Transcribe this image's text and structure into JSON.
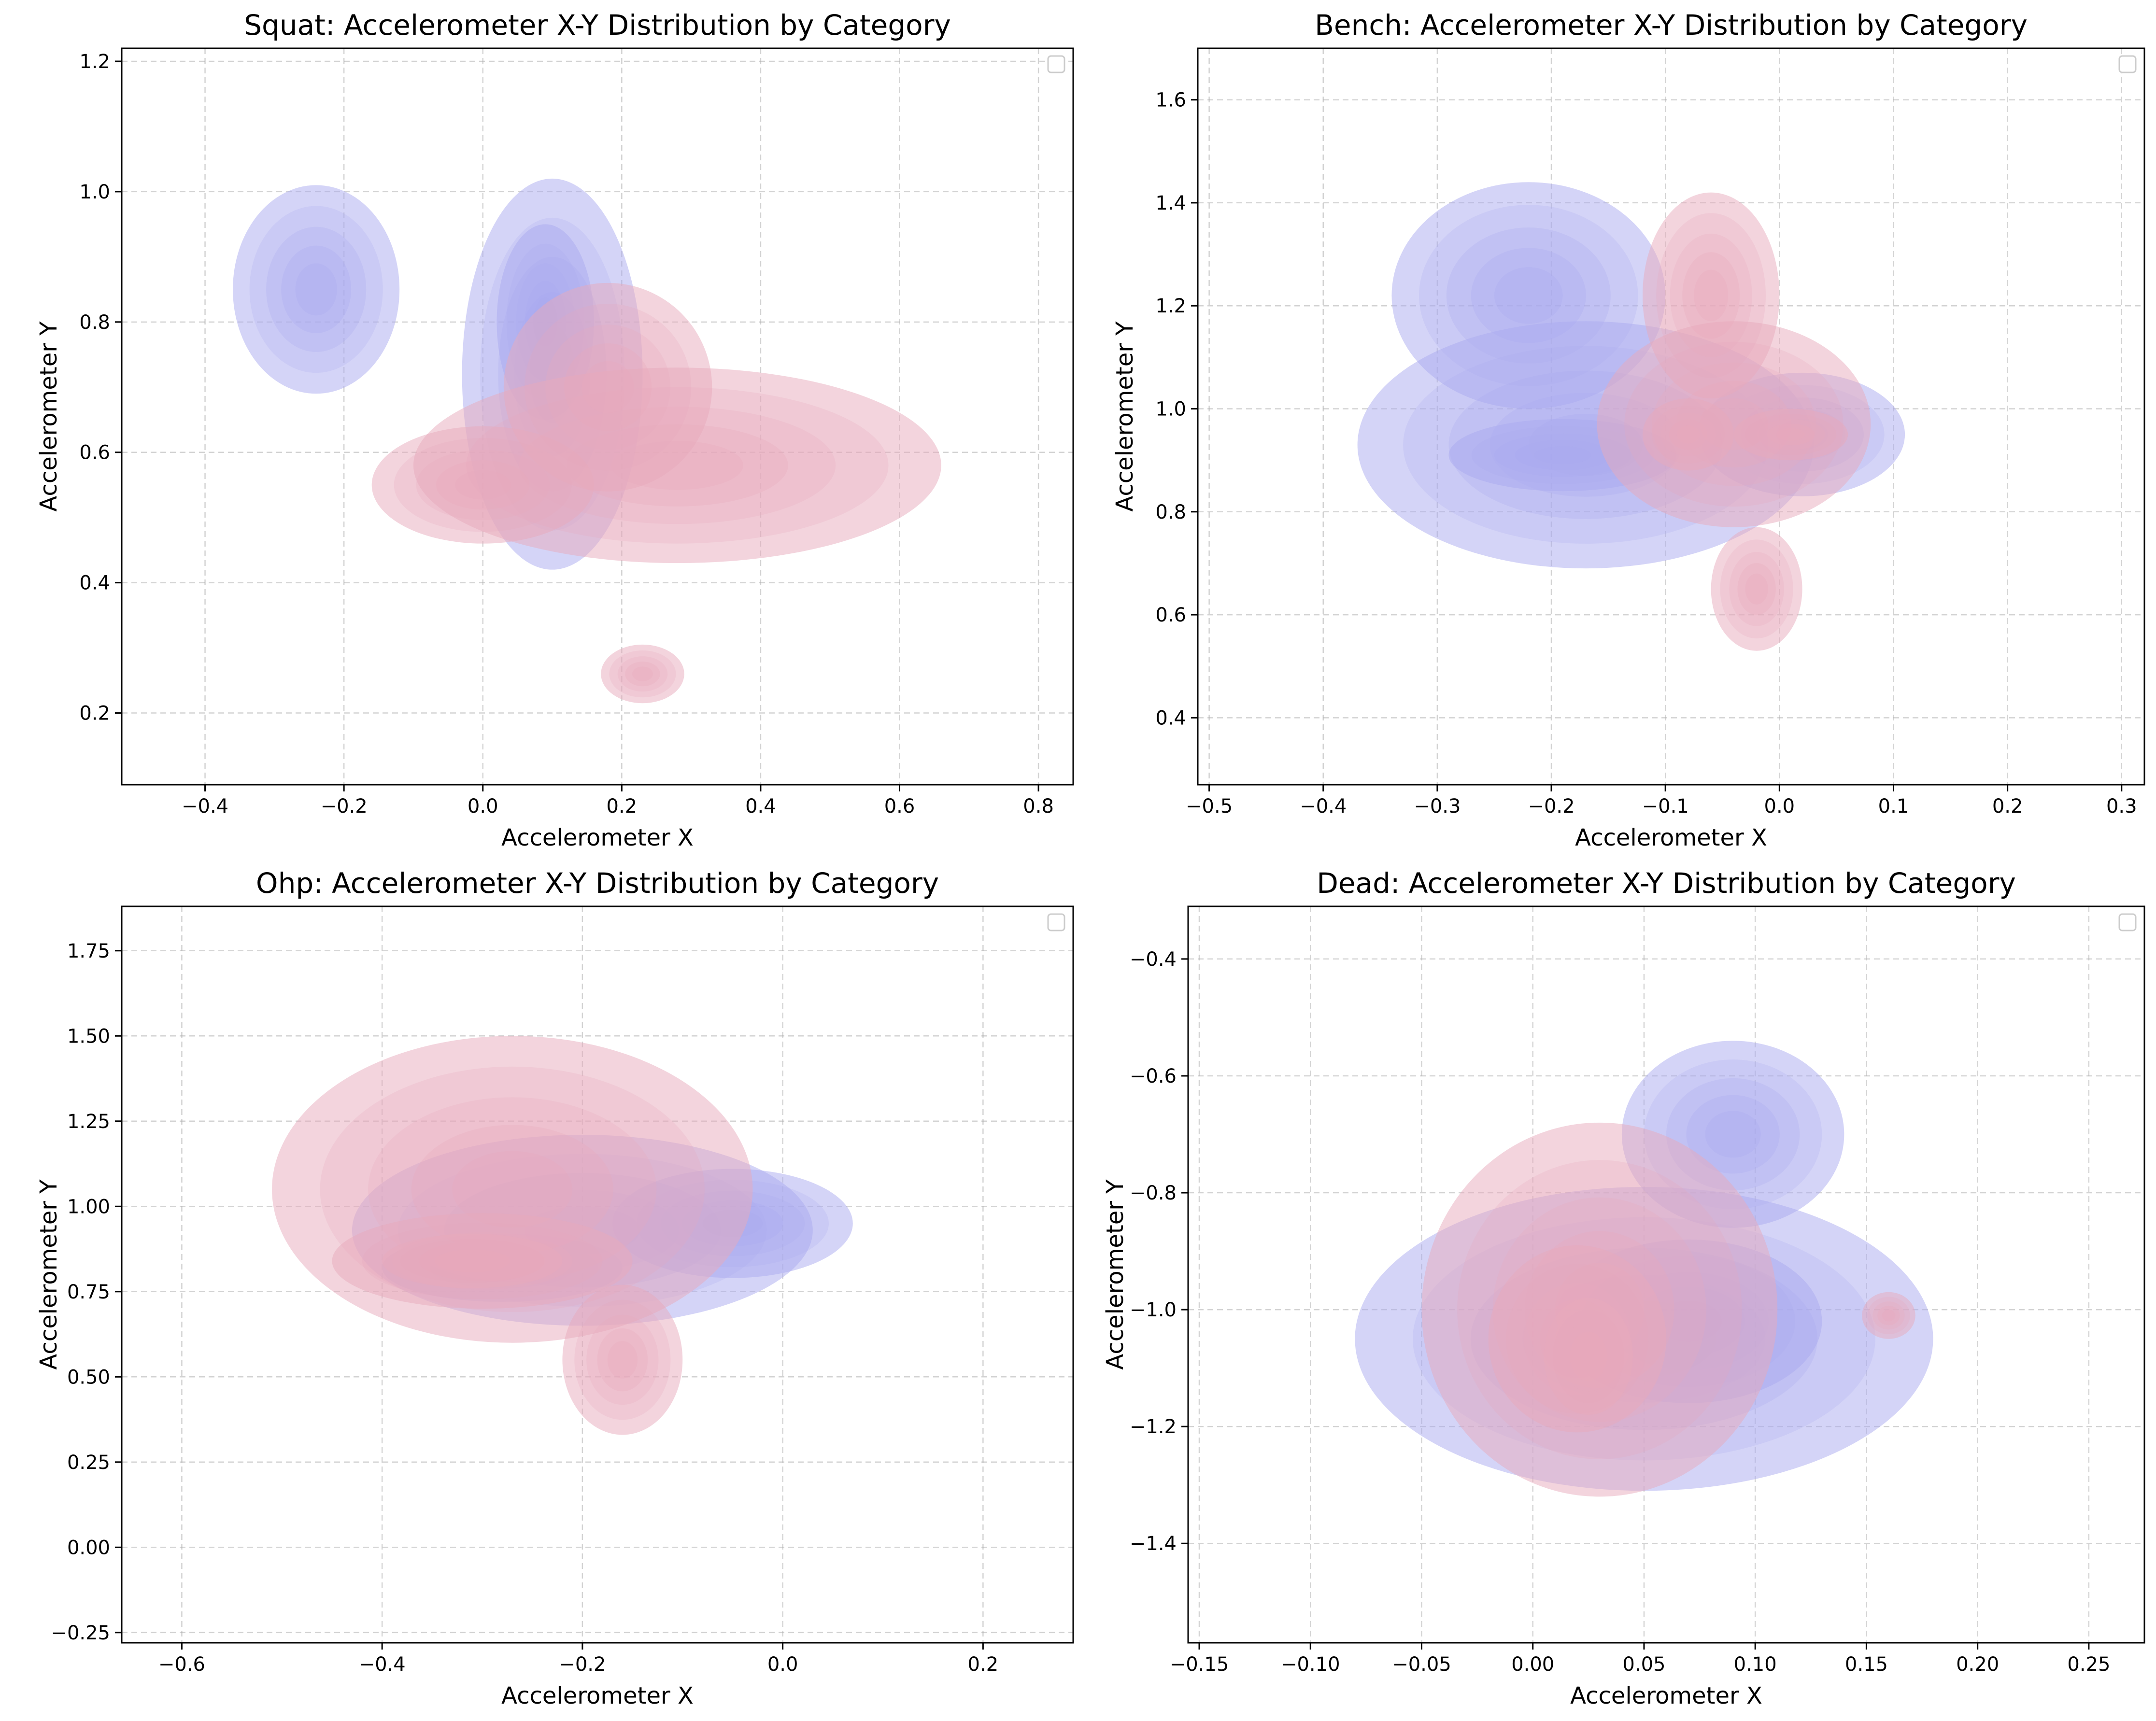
{
  "chart_data": [
    {
      "type": "contour",
      "title": "Squat: Accelerometer X-Y Distribution by Category",
      "xlabel": "Accelerometer X",
      "ylabel": "Accelerometer Y",
      "xlim": [
        -0.52,
        0.85
      ],
      "ylim": [
        0.09,
        1.22
      ],
      "xticks": [
        -0.4,
        -0.2,
        0.0,
        0.2,
        0.4,
        0.6,
        0.8
      ],
      "yticks": [
        0.2,
        0.4,
        0.6,
        0.8,
        1.0,
        1.2
      ],
      "grid": true,
      "legend": "top-right",
      "series": [
        {
          "color": "#aaaaf0",
          "blobs": [
            {
              "cx": -0.24,
              "cy": 0.85,
              "rx": 0.12,
              "ry": 0.16
            },
            {
              "cx": 0.1,
              "cy": 0.72,
              "rx": 0.13,
              "ry": 0.3
            },
            {
              "cx": 0.09,
              "cy": 0.8,
              "rx": 0.07,
              "ry": 0.15
            }
          ]
        },
        {
          "color": "#e8a9bc",
          "blobs": [
            {
              "cx": 0.28,
              "cy": 0.58,
              "rx": 0.38,
              "ry": 0.15
            },
            {
              "cx": 0.0,
              "cy": 0.55,
              "rx": 0.16,
              "ry": 0.09
            },
            {
              "cx": 0.18,
              "cy": 0.7,
              "rx": 0.15,
              "ry": 0.16
            },
            {
              "cx": 0.23,
              "cy": 0.26,
              "rx": 0.06,
              "ry": 0.045
            }
          ]
        }
      ]
    },
    {
      "type": "contour",
      "title": "Bench: Accelerometer X-Y Distribution by Category",
      "xlabel": "Accelerometer X",
      "ylabel": "Accelerometer Y",
      "xlim": [
        -0.51,
        0.32
      ],
      "ylim": [
        0.27,
        1.7
      ],
      "xticks": [
        -0.5,
        -0.4,
        -0.3,
        -0.2,
        -0.1,
        0.0,
        0.1,
        0.2,
        0.3
      ],
      "yticks": [
        0.4,
        0.6,
        0.8,
        1.0,
        1.2,
        1.4,
        1.6
      ],
      "grid": true,
      "legend": "top-right",
      "series": [
        {
          "color": "#aaaaf0",
          "blobs": [
            {
              "cx": -0.17,
              "cy": 0.93,
              "rx": 0.2,
              "ry": 0.24
            },
            {
              "cx": -0.22,
              "cy": 1.22,
              "rx": 0.12,
              "ry": 0.22
            },
            {
              "cx": 0.02,
              "cy": 0.95,
              "rx": 0.09,
              "ry": 0.12
            },
            {
              "cx": -0.19,
              "cy": 0.91,
              "rx": 0.1,
              "ry": 0.07
            }
          ]
        },
        {
          "color": "#e8a9bc",
          "blobs": [
            {
              "cx": -0.04,
              "cy": 0.97,
              "rx": 0.12,
              "ry": 0.2
            },
            {
              "cx": -0.06,
              "cy": 1.22,
              "rx": 0.06,
              "ry": 0.2
            },
            {
              "cx": -0.02,
              "cy": 0.65,
              "rx": 0.04,
              "ry": 0.12
            },
            {
              "cx": -0.08,
              "cy": 0.95,
              "rx": 0.04,
              "ry": 0.07
            },
            {
              "cx": 0.01,
              "cy": 0.95,
              "rx": 0.05,
              "ry": 0.05
            }
          ]
        }
      ]
    },
    {
      "type": "contour",
      "title": "Ohp: Accelerometer X-Y Distribution by Category",
      "xlabel": "Accelerometer X",
      "ylabel": "Accelerometer Y",
      "xlim": [
        -0.66,
        0.29
      ],
      "ylim": [
        -0.28,
        1.88
      ],
      "xticks": [
        -0.6,
        -0.4,
        -0.2,
        0.0,
        0.2
      ],
      "yticks": [
        -0.25,
        0.0,
        0.25,
        0.5,
        0.75,
        1.0,
        1.25,
        1.5,
        1.75
      ],
      "grid": true,
      "legend": "top-right",
      "series": [
        {
          "color": "#aaaaf0",
          "blobs": [
            {
              "cx": -0.2,
              "cy": 0.93,
              "rx": 0.23,
              "ry": 0.28
            },
            {
              "cx": -0.05,
              "cy": 0.95,
              "rx": 0.12,
              "ry": 0.16
            },
            {
              "cx": -0.28,
              "cy": 0.82,
              "rx": 0.12,
              "ry": 0.1
            }
          ]
        },
        {
          "color": "#e8a9bc",
          "blobs": [
            {
              "cx": -0.27,
              "cy": 1.05,
              "rx": 0.24,
              "ry": 0.45
            },
            {
              "cx": -0.16,
              "cy": 0.55,
              "rx": 0.06,
              "ry": 0.22
            },
            {
              "cx": -0.3,
              "cy": 0.84,
              "rx": 0.15,
              "ry": 0.14
            },
            {
              "cx": -0.31,
              "cy": 0.84,
              "rx": 0.09,
              "ry": 0.08
            }
          ]
        }
      ]
    },
    {
      "type": "contour",
      "title": "Dead: Accelerometer X-Y Distribution by Category",
      "xlabel": "Accelerometer X",
      "ylabel": "Accelerometer Y",
      "xlim": [
        -0.155,
        0.275
      ],
      "ylim": [
        -1.57,
        -0.31
      ],
      "xticks": [
        -0.15,
        -0.1,
        -0.05,
        0.0,
        0.05,
        0.1,
        0.15,
        0.2,
        0.25
      ],
      "yticks": [
        -1.4,
        -1.2,
        -1.0,
        -0.8,
        -0.6,
        -0.4
      ],
      "grid": true,
      "legend": "top-right",
      "series": [
        {
          "color": "#aaaaf0",
          "blobs": [
            {
              "cx": 0.05,
              "cy": -1.05,
              "rx": 0.13,
              "ry": 0.26
            },
            {
              "cx": 0.09,
              "cy": -0.7,
              "rx": 0.05,
              "ry": 0.16
            },
            {
              "cx": 0.07,
              "cy": -1.02,
              "rx": 0.06,
              "ry": 0.14
            }
          ]
        },
        {
          "color": "#e8a9bc",
          "blobs": [
            {
              "cx": 0.03,
              "cy": -1.0,
              "rx": 0.08,
              "ry": 0.32
            },
            {
              "cx": 0.16,
              "cy": -1.01,
              "rx": 0.012,
              "ry": 0.04
            },
            {
              "cx": 0.02,
              "cy": -1.05,
              "rx": 0.04,
              "ry": 0.16
            },
            {
              "cx": 0.025,
              "cy": -1.08,
              "rx": 0.02,
              "ry": 0.1
            }
          ]
        }
      ]
    }
  ]
}
